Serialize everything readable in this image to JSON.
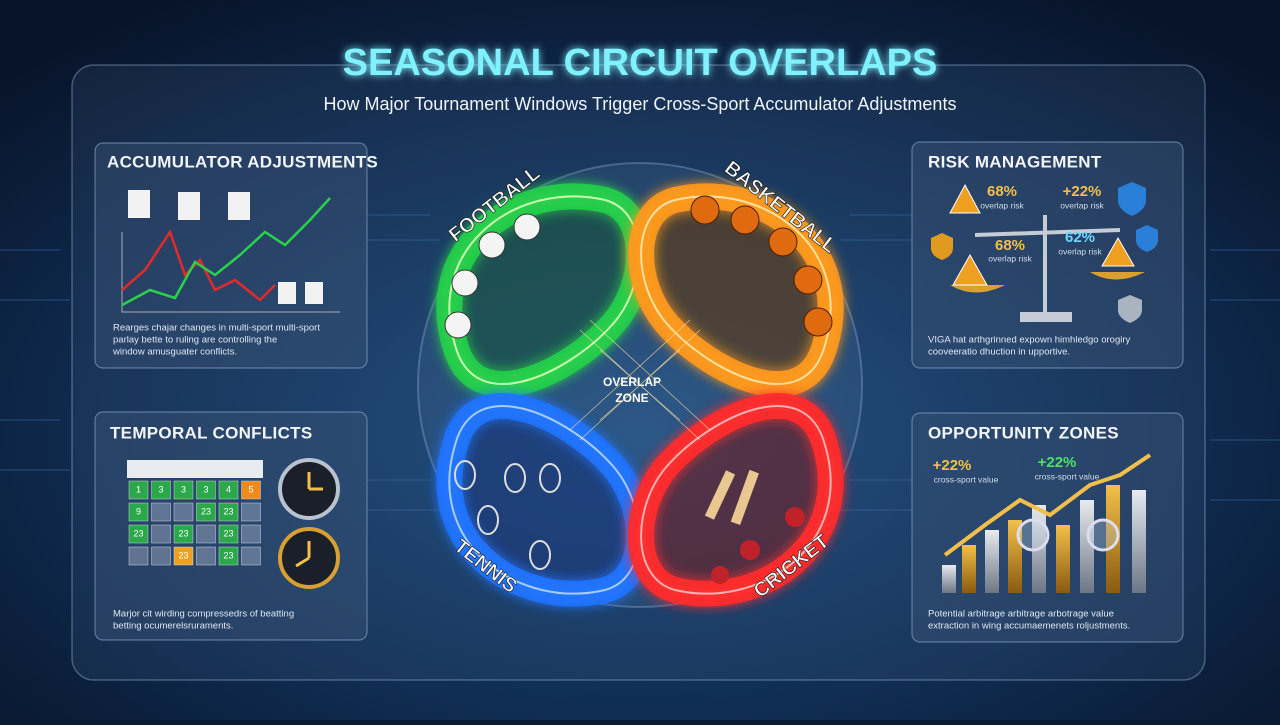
{
  "header": {
    "title": "SEASONAL CIRCUIT OVERLAPS",
    "subtitle": "How Major Tournament Windows Trigger Cross-Sport Accumulator Adjustments"
  },
  "panels": {
    "accumulator": {
      "title": "ACCUMULATOR ADJUSTMENTS",
      "caption": [
        "Rearges chajar changes in multi-sport multi-sport",
        "parlay bette to ruling are controlling the",
        "window amusguater conflicts."
      ]
    },
    "risk": {
      "title": "RISK MANAGEMENT",
      "stats": [
        {
          "value": "68%",
          "label": "overlap risk"
        },
        {
          "value": "+22%",
          "label": "overlap risk"
        },
        {
          "value": "68%",
          "label": "overlap risk"
        },
        {
          "value": "62%",
          "label": "overlap risk"
        }
      ],
      "caption": [
        "VIGA hat arthgrinned expown himhledgo orogiry",
        "cooveeratio dhuction in upportive."
      ]
    },
    "temporal": {
      "title": "TEMPORAL CONFLICTS",
      "calendar": [
        [
          "1",
          "3",
          "3",
          "3",
          "4",
          "5"
        ],
        [
          "9",
          null,
          null,
          "23",
          "23",
          null
        ],
        [
          "23",
          null,
          "23",
          null,
          "23",
          null
        ],
        [
          null,
          null,
          "23",
          null,
          "23",
          null
        ]
      ],
      "caption": [
        "Marjor cit wirding compressedrs of beatting",
        "betting ocumerelsruraments."
      ]
    },
    "opportunity": {
      "title": "OPPORTUNITY ZONES",
      "stats": [
        {
          "value": "+22%",
          "label": "cross-sport value"
        },
        {
          "value": "+22%",
          "label": "cross-sport value"
        }
      ],
      "caption": [
        "Potential arbitrage arbitrage arbotrage value",
        "extraction in wing accumaemenets roljustments."
      ]
    }
  },
  "circuit": {
    "sports": [
      "FOOTBALL",
      "BASKETBALL",
      "TENNIS",
      "CRICKET"
    ],
    "center": [
      "OVERLAP",
      "ZONE"
    ]
  }
}
